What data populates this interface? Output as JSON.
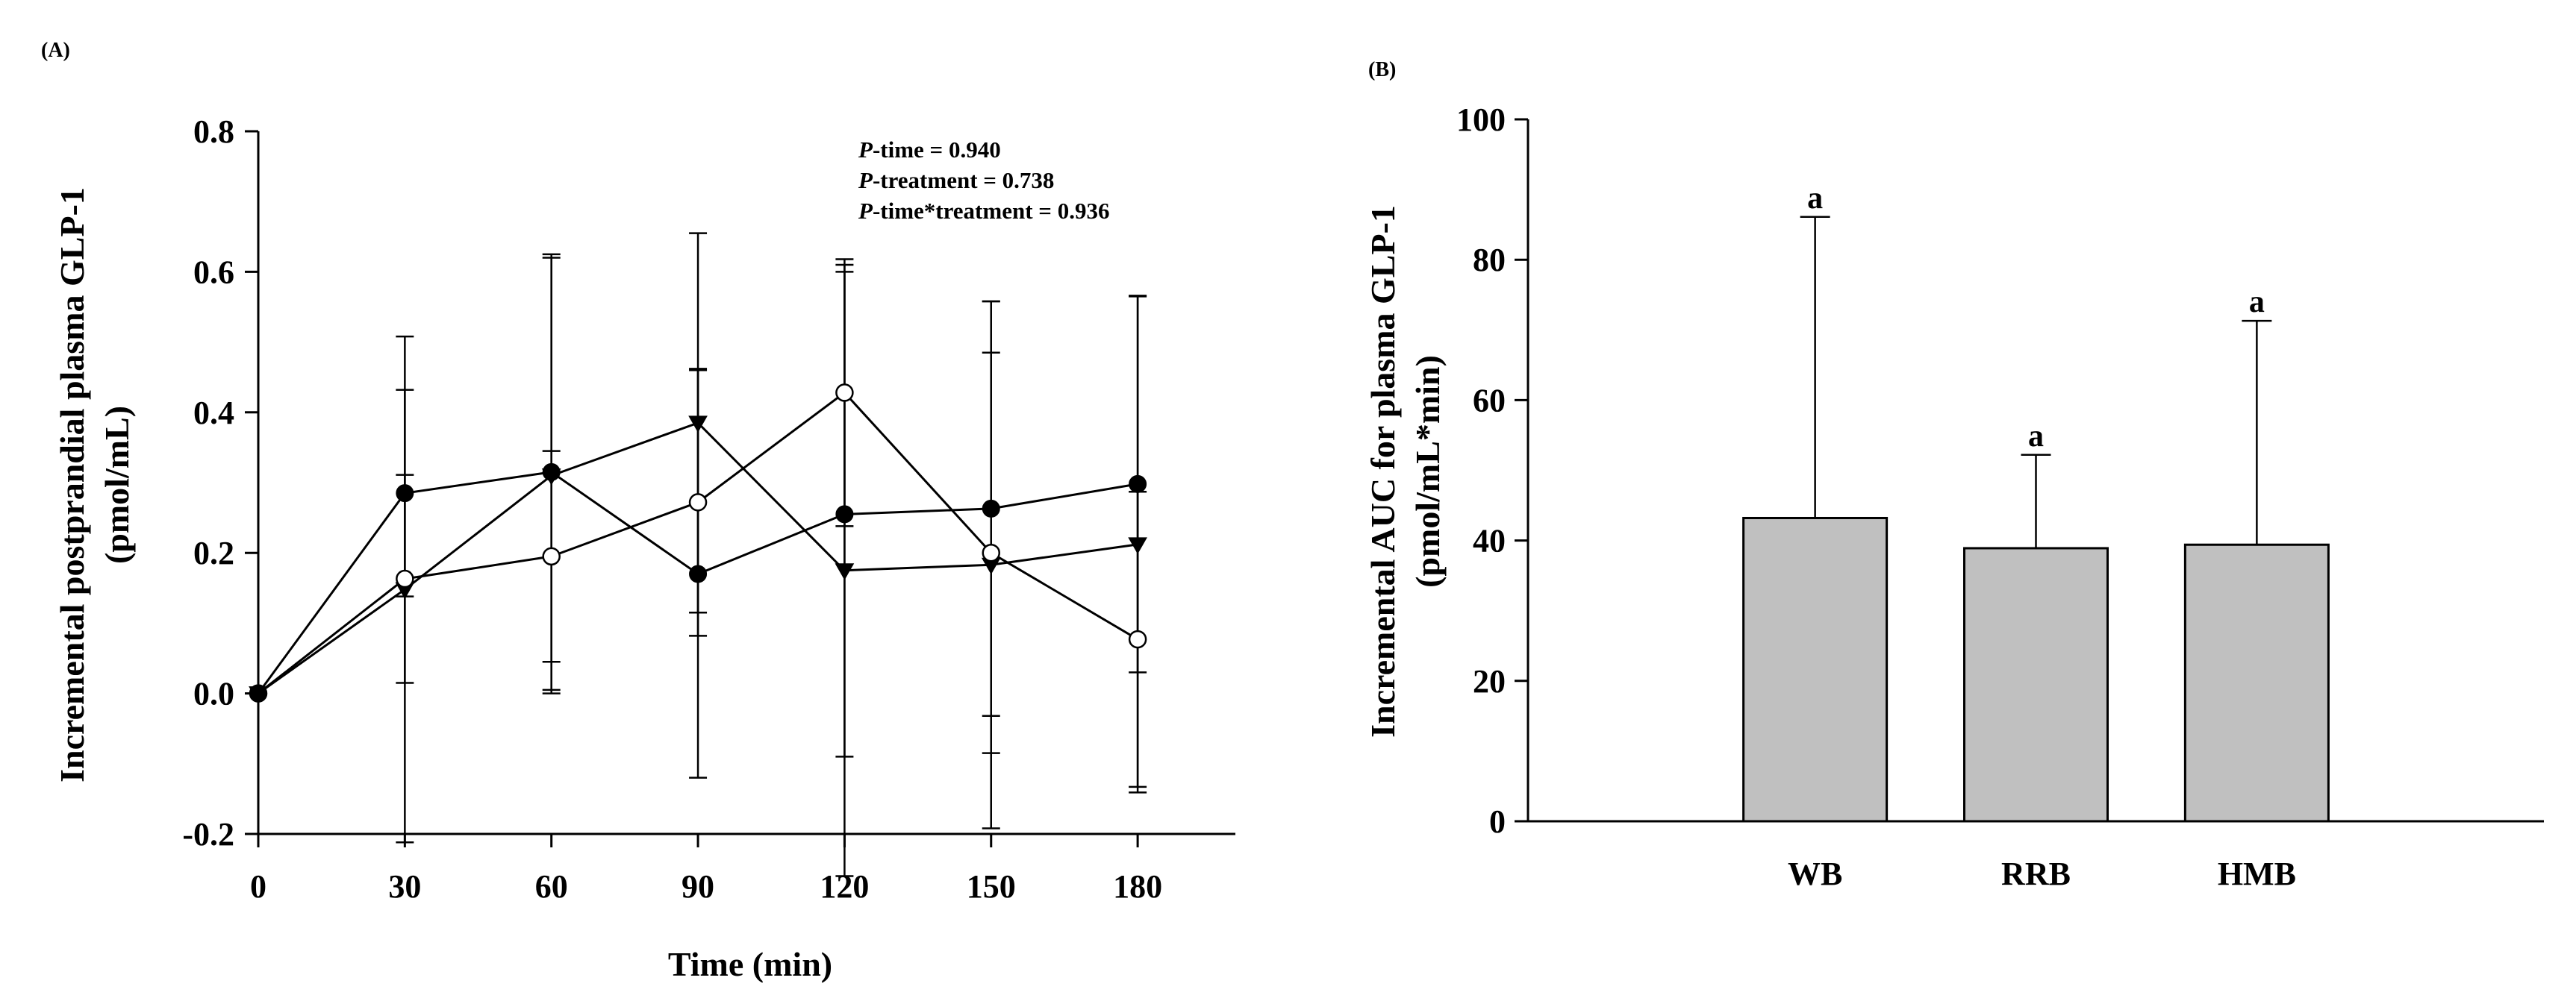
{
  "chart_data": [
    {
      "panel": "(A)",
      "type": "line",
      "xlabel": "Time (min)",
      "ylabel": "Incremental postprandial plasma GLP-1",
      "ylabel_units": "(pmol/mL)",
      "x": [
        0,
        30,
        60,
        90,
        120,
        150,
        180
      ],
      "x_ticks": [
        "0",
        "30",
        "60",
        "90",
        "120",
        "150",
        "180"
      ],
      "xlim": [
        0,
        200
      ],
      "ylim": [
        -0.2,
        0.8
      ],
      "y_ticks": [
        "-0.2",
        "0.0",
        "0.2",
        "0.4",
        "0.6",
        "0.8"
      ],
      "annotations": [
        {
          "italic": "P",
          "text": "-time = 0.940"
        },
        {
          "italic": "P",
          "text": "-treatment = 0.738"
        },
        {
          "italic": "P",
          "text": "-time*treatment = 0.936"
        }
      ],
      "series": [
        {
          "marker": "filled-circle",
          "values": [
            0,
            0.285,
            0.315,
            0.17,
            0.255,
            0.263,
            0.298
          ],
          "err": [
            0,
            0.147,
            0.31,
            0.29,
            0.345,
            0.295,
            0.268
          ]
        },
        {
          "marker": "open-circle",
          "values": [
            0,
            0.163,
            0.195,
            0.272,
            0.428,
            0.2,
            0.077
          ],
          "err": [
            0,
            0.148,
            0.15,
            0.19,
            0.19,
            0.285,
            0.21
          ]
        },
        {
          "marker": "filled-triangle-down",
          "values": [
            0,
            0.148,
            0.31,
            0.385,
            0.175,
            0.183,
            0.212
          ],
          "err": [
            0,
            0.36,
            0.31,
            0.27,
            0.435,
            0.375,
            0.353
          ]
        }
      ]
    },
    {
      "panel": "(B)",
      "type": "bar",
      "categories": [
        "WB",
        "RRB",
        "HMB"
      ],
      "values": [
        43.2,
        38.9,
        39.4
      ],
      "err": [
        42.9,
        13.3,
        31.9
      ],
      "letters": [
        "a",
        "a",
        "a"
      ],
      "xlabel": "",
      "ylabel": "Incremental AUC for plasma GLP-1",
      "ylabel_units": "(pmol/mL*min)",
      "ylim": [
        0,
        100
      ],
      "y_ticks": [
        "0",
        "20",
        "40",
        "60",
        "80",
        "100"
      ],
      "bar_color": "#c0c0c0"
    }
  ]
}
